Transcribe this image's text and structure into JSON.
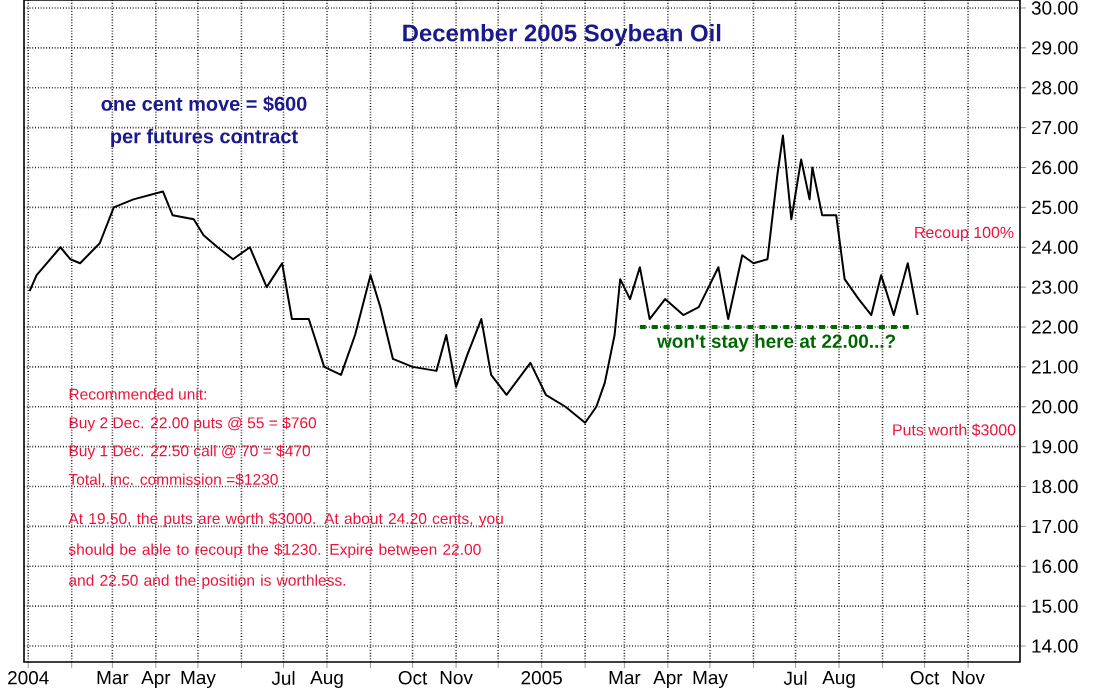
{
  "chart_data": {
    "type": "line",
    "title": "December 2005 Soybean Oil",
    "x": [
      "2004-01-02",
      "2004-01-07",
      "2004-01-24",
      "2004-01-31",
      "2004-02-07",
      "2004-02-21",
      "2004-03-02",
      "2004-03-16",
      "2004-04-06",
      "2004-04-13",
      "2004-04-28",
      "2004-05-05",
      "2004-05-15",
      "2004-05-26",
      "2004-06-07",
      "2004-06-19",
      "2004-06-30",
      "2004-07-07",
      "2004-07-19",
      "2004-07-30",
      "2004-08-11",
      "2004-08-21",
      "2004-09-01",
      "2004-09-08",
      "2004-09-17",
      "2004-10-01",
      "2004-10-18",
      "2004-10-25",
      "2004-11-01",
      "2004-11-09",
      "2004-11-19",
      "2004-11-26",
      "2004-12-07",
      "2004-12-24",
      "2005-01-04",
      "2005-01-18",
      "2005-02-01",
      "2005-02-09",
      "2005-02-15",
      "2005-02-22",
      "2005-02-26",
      "2005-03-05",
      "2005-03-12",
      "2005-03-19",
      "2005-03-30",
      "2005-04-12",
      "2005-04-23",
      "2005-05-07",
      "2005-05-14",
      "2005-05-24",
      "2005-06-01",
      "2005-06-11",
      "2005-06-18",
      "2005-06-22",
      "2005-06-28",
      "2005-07-05",
      "2005-07-11",
      "2005-07-13",
      "2005-07-20",
      "2005-07-30",
      "2005-08-05",
      "2005-08-15",
      "2005-08-24",
      "2005-08-31",
      "2005-09-09",
      "2005-09-19",
      "2005-09-26"
    ],
    "series": [
      {
        "color": "#000000",
        "values": [
          22.9,
          23.3,
          24.0,
          23.7,
          23.6,
          24.1,
          25.0,
          25.2,
          25.4,
          24.8,
          24.7,
          24.3,
          24.0,
          23.7,
          24.0,
          23.0,
          23.6,
          22.2,
          22.2,
          21.0,
          20.8,
          21.8,
          23.3,
          22.5,
          21.2,
          21.0,
          20.9,
          21.8,
          20.5,
          21.3,
          22.2,
          20.8,
          20.3,
          21.1,
          20.3,
          20.0,
          19.6,
          20.0,
          20.6,
          21.8,
          23.2,
          22.7,
          23.5,
          22.2,
          22.7,
          22.3,
          22.5,
          23.5,
          22.2,
          23.8,
          23.6,
          23.7,
          25.8,
          26.8,
          24.7,
          26.2,
          25.2,
          26.0,
          24.8,
          24.8,
          23.2,
          22.7,
          22.3,
          23.3,
          22.3,
          23.6,
          22.3
        ]
      },
      {
        "name": "won't stay here at 22.00...?",
        "color": "#006600",
        "line_style": "dashed",
        "x": [
          "2005-03-12",
          "2005-09-23"
        ],
        "values": [
          22,
          22
        ]
      }
    ],
    "xlim": [
      "2003-12-29",
      "2005-12-08"
    ],
    "xticks": [
      {
        "value": "2004-01-01",
        "label": "2004"
      },
      {
        "value": "2004-02-01",
        "label": null
      },
      {
        "value": "2004-03-01",
        "label": "Mar"
      },
      {
        "value": "2004-04-01",
        "label": "Apr"
      },
      {
        "value": "2004-05-01",
        "label": "May"
      },
      {
        "value": "2004-06-01",
        "label": null
      },
      {
        "value": "2004-07-01",
        "label": "Jul"
      },
      {
        "value": "2004-08-01",
        "label": "Aug"
      },
      {
        "value": "2004-09-01",
        "label": null
      },
      {
        "value": "2004-10-01",
        "label": "Oct"
      },
      {
        "value": "2004-11-01",
        "label": "Nov"
      },
      {
        "value": "2004-12-01",
        "label": null
      },
      {
        "value": "2005-01-01",
        "label": "2005"
      },
      {
        "value": "2005-02-01",
        "label": null
      },
      {
        "value": "2005-03-01",
        "label": "Mar"
      },
      {
        "value": "2005-04-01",
        "label": "Apr"
      },
      {
        "value": "2005-05-01",
        "label": "May"
      },
      {
        "value": "2005-06-01",
        "label": null
      },
      {
        "value": "2005-07-01",
        "label": "Jul"
      },
      {
        "value": "2005-08-01",
        "label": "Aug"
      },
      {
        "value": "2005-09-01",
        "label": null
      },
      {
        "value": "2005-10-01",
        "label": "Oct"
      },
      {
        "value": "2005-11-01",
        "label": "Nov"
      }
    ],
    "ylim": [
      13.6,
      30.2
    ],
    "yticks": [
      {
        "value": 14,
        "label": "14.00"
      },
      {
        "value": 15,
        "label": "15.00"
      },
      {
        "value": 16,
        "label": "16.00"
      },
      {
        "value": 17,
        "label": "17.00"
      },
      {
        "value": 18,
        "label": "18.00"
      },
      {
        "value": 19,
        "label": "19.00"
      },
      {
        "value": 20,
        "label": "20.00"
      },
      {
        "value": 21,
        "label": "21.00"
      },
      {
        "value": 22,
        "label": "22.00"
      },
      {
        "value": 23,
        "label": "23.00"
      },
      {
        "value": 24,
        "label": "24.00"
      },
      {
        "value": 25,
        "label": "25.00"
      },
      {
        "value": 26,
        "label": "26.00"
      },
      {
        "value": 27,
        "label": "27.00"
      },
      {
        "value": 28,
        "label": "28.00"
      },
      {
        "value": 29,
        "label": "29.00"
      },
      {
        "value": 30,
        "label": "30.00"
      }
    ],
    "grid": true,
    "legend": false,
    "marker": "none",
    "line_style": "solid",
    "annotations": [
      "one cent move = $600",
      "per futures contract",
      "Recommended unit:",
      "Buy 2 Dec. 22.00 puts @ 55 = $760",
      "Buy 1 Dec. 22.50 call @ 70   = $470",
      "Total, inc. commission     =$1230",
      "At 19.50, the puts are worth $3000. At about 24.20 cents, you should be able to recoup the $1230. Expire between 22.00 and 22.50 and the position is worthless.",
      "Recoup 100%",
      "Puts worth $3000"
    ]
  }
}
